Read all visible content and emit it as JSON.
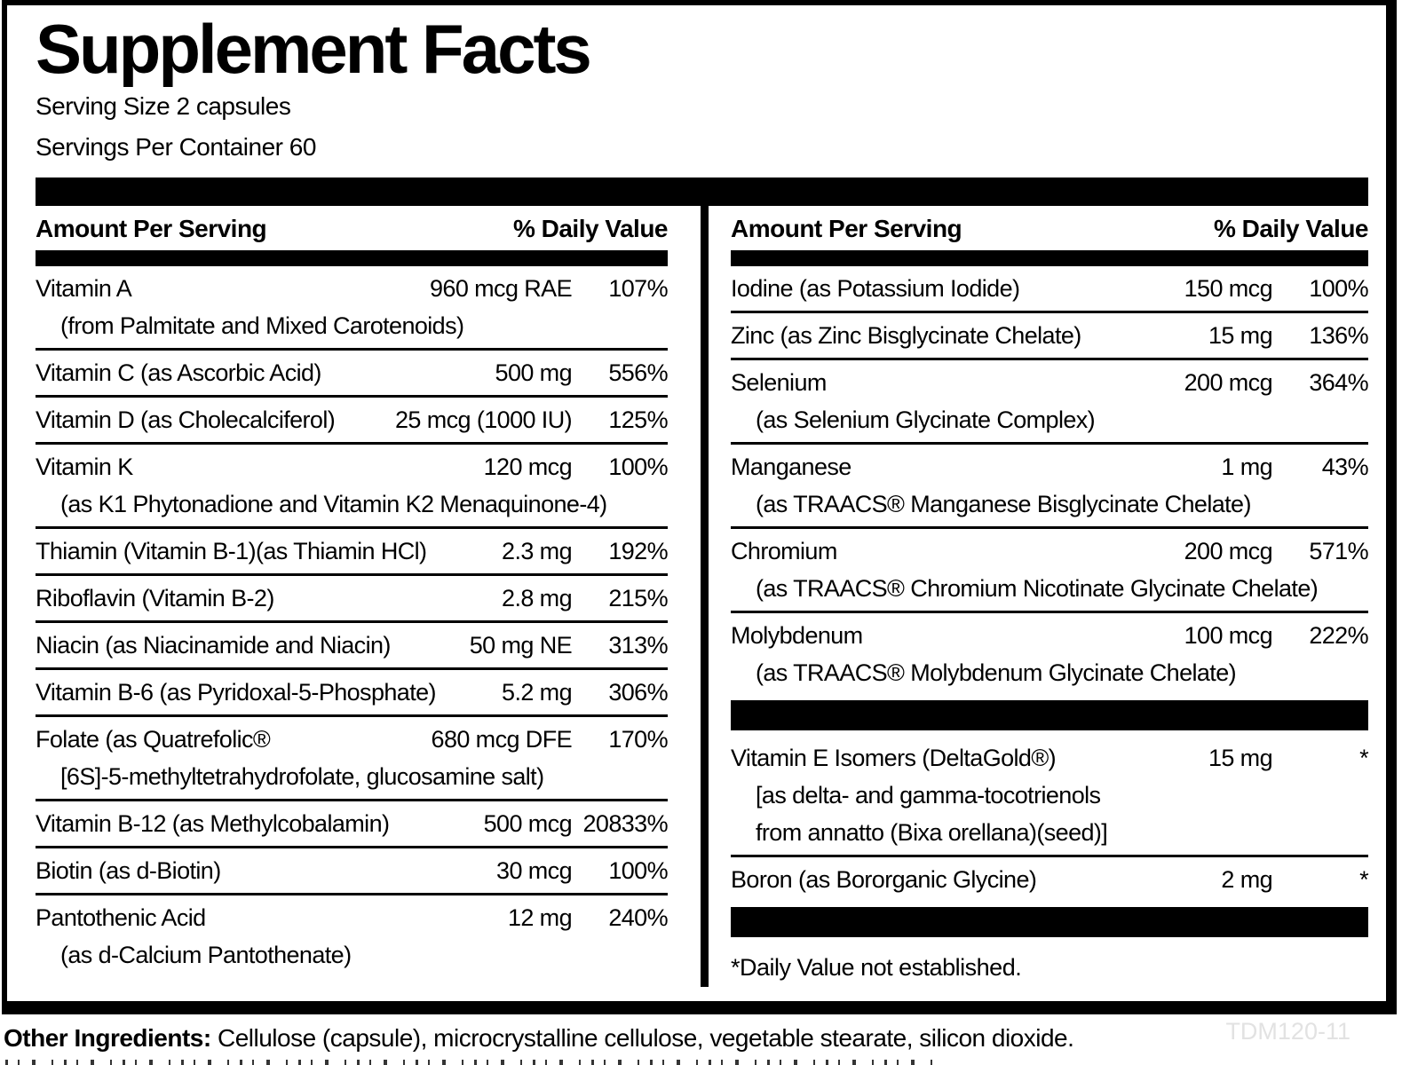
{
  "title": "Supplement Facts",
  "serving_size": "Serving Size 2 capsules",
  "servings_per_container": "Servings Per Container 60",
  "header": {
    "amount": "Amount Per Serving",
    "dv": "% Daily Value"
  },
  "left": {
    "rows": [
      {
        "name": "Vitamin A",
        "sub": "(from Palmitate and Mixed Carotenoids)",
        "amount": "960 mcg RAE",
        "dv": "107%"
      },
      {
        "name": "Vitamin C (as Ascorbic Acid)",
        "amount": "500 mg",
        "dv": "556%"
      },
      {
        "name": "Vitamin D (as Cholecalciferol)",
        "amount": "25 mcg (1000 IU)",
        "dv": "125%"
      },
      {
        "name": "Vitamin K",
        "sub": "(as K1 Phytonadione and Vitamin K2 Menaquinone-4)",
        "amount": "120 mcg",
        "dv": "100%"
      },
      {
        "name": "Thiamin (Vitamin B-1)(as Thiamin HCl)",
        "amount": "2.3 mg",
        "dv": "192%"
      },
      {
        "name": "Riboflavin (Vitamin B-2)",
        "amount": "2.8 mg",
        "dv": "215%"
      },
      {
        "name": "Niacin (as Niacinamide and Niacin)",
        "amount": "50 mg NE",
        "dv": "313%"
      },
      {
        "name": "Vitamin B-6 (as Pyridoxal-5-Phosphate)",
        "amount": "5.2 mg",
        "dv": "306%"
      },
      {
        "name": "Folate (as Quatrefolic®",
        "sub": "[6S]-5-methyltetrahydrofolate, glucosamine salt)",
        "amount": "680 mcg DFE",
        "dv": "170%"
      },
      {
        "name": "Vitamin B-12 (as Methylcobalamin)",
        "amount": "500 mcg",
        "dv": "20833%"
      },
      {
        "name": "Biotin (as d-Biotin)",
        "amount": "30 mcg",
        "dv": "100%"
      },
      {
        "name": "Pantothenic Acid",
        "sub": "(as d-Calcium Pantothenate)",
        "amount": "12 mg",
        "dv": "240%"
      }
    ]
  },
  "right": {
    "rows": [
      {
        "name": "Iodine (as Potassium Iodide)",
        "amount": "150 mcg",
        "dv": "100%"
      },
      {
        "name": "Zinc (as Zinc Bisglycinate Chelate)",
        "amount": "15 mg",
        "dv": "136%"
      },
      {
        "name": "Selenium",
        "sub": "(as Selenium Glycinate Complex)",
        "amount": "200 mcg",
        "dv": "364%"
      },
      {
        "name": "Manganese",
        "sub": "(as TRAACS® Manganese Bisglycinate Chelate)",
        "amount": "1 mg",
        "dv": "43%"
      },
      {
        "name": "Chromium",
        "sub": "(as TRAACS® Chromium Nicotinate Glycinate Chelate)",
        "amount": "200 mcg",
        "dv": "571%"
      },
      {
        "name": "Molybdenum",
        "sub": "(as TRAACS® Molybdenum Glycinate Chelate)",
        "amount": "100 mcg",
        "dv": "222%"
      },
      {
        "name": "Vitamin E Isomers (DeltaGold®)",
        "sub": "[as delta- and gamma-tocotrienols",
        "sub2": "from annatto (Bixa orellana)(seed)]",
        "amount": "15 mg",
        "dv": "*"
      },
      {
        "name": "Boron (as Bororganic Glycine)",
        "amount": "2 mg",
        "dv": "*"
      }
    ],
    "footnote": "*Daily Value not established."
  },
  "footer": {
    "other_ingredients_label": "Other Ingredients:",
    "other_ingredients_text": " Cellulose (capsule), microcrystalline cellulose, vegetable stearate, silicon dioxide.",
    "code": "TDM120-11"
  },
  "colors": {
    "text": "#000000",
    "background": "#ffffff",
    "code_gray": "#e2e2e2"
  }
}
